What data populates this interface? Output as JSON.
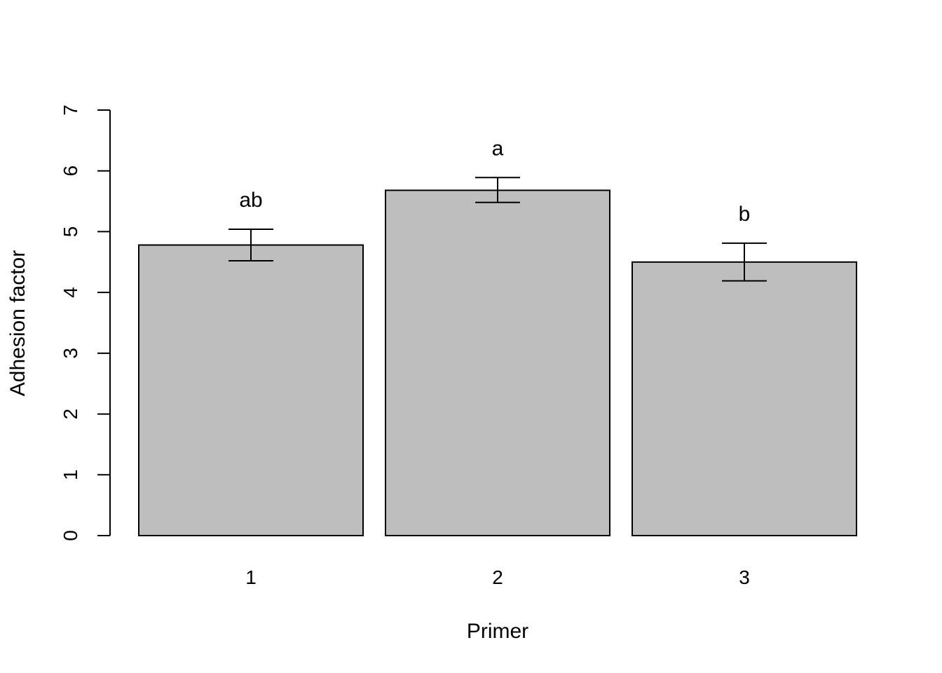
{
  "chart_data": {
    "type": "bar",
    "categories": [
      "1",
      "2",
      "3"
    ],
    "values": [
      4.78,
      5.68,
      4.5
    ],
    "error_low": [
      4.52,
      5.48,
      4.19
    ],
    "error_high": [
      5.04,
      5.89,
      4.81
    ],
    "significance_labels": [
      "ab",
      "a",
      "b"
    ],
    "title": "",
    "xlabel": "Primer",
    "ylabel": "Adhesion factor",
    "ylim": [
      0,
      7
    ],
    "yticks": [
      "0",
      "1",
      "2",
      "3",
      "4",
      "5",
      "6",
      "7"
    ],
    "grid": false,
    "legend": "none",
    "colors": {
      "bar_fill": "#bebebe",
      "bar_stroke": "#000000"
    }
  }
}
